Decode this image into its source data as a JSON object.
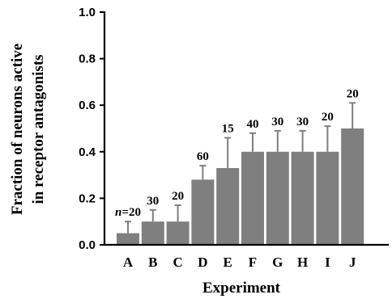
{
  "chart_data": {
    "type": "bar",
    "xlabel": "Experiment",
    "ylabel_line1": "Fraction of neurons active",
    "ylabel_line2": "in receptor antagonists",
    "ylim": [
      0,
      1.0
    ],
    "yticks": [
      "0.0",
      "0.2",
      "0.4",
      "0.6",
      "0.8",
      "1.0"
    ],
    "categories": [
      "A",
      "B",
      "C",
      "D",
      "E",
      "F",
      "G",
      "H",
      "I",
      "J"
    ],
    "values": [
      0.05,
      0.1,
      0.1,
      0.28,
      0.33,
      0.4,
      0.4,
      0.4,
      0.4,
      0.5
    ],
    "errors": [
      0.05,
      0.05,
      0.07,
      0.06,
      0.13,
      0.08,
      0.09,
      0.09,
      0.11,
      0.11
    ],
    "n_labels": [
      "n=20",
      "30",
      "20",
      "60",
      "15",
      "40",
      "30",
      "30",
      "20",
      "20"
    ],
    "grid": false,
    "bar_color": "#7f7f7f"
  }
}
